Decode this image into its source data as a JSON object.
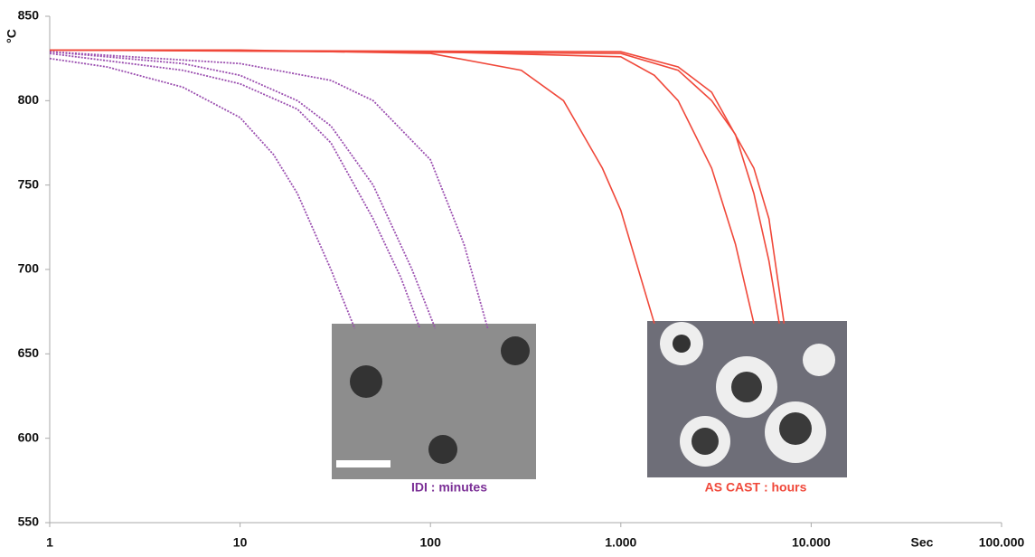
{
  "chart_data": {
    "type": "line",
    "x_label": "Sec",
    "y_label": "°C",
    "xscale": "log",
    "grid": false,
    "xlim": [
      1,
      100000
    ],
    "ylim": [
      550,
      850
    ],
    "xticks": [
      1,
      10,
      100,
      {
        "value": 1000,
        "label": "1.000"
      },
      {
        "value": 10000,
        "label": "10.000"
      },
      {
        "value": 100000,
        "label": "100.000"
      }
    ],
    "yticks": [
      550,
      600,
      650,
      700,
      750,
      800,
      850
    ],
    "series": [
      {
        "color": "#9b4fb0",
        "dash": true,
        "x": [
          1,
          2,
          5,
          10,
          15,
          20,
          30,
          40
        ],
        "values": [
          825,
          820,
          808,
          790,
          768,
          745,
          700,
          665
        ]
      },
      {
        "color": "#9b4fb0",
        "dash": true,
        "x": [
          1,
          5,
          10,
          20,
          30,
          50,
          70,
          88
        ],
        "values": [
          828,
          818,
          810,
          795,
          775,
          730,
          695,
          665
        ]
      },
      {
        "color": "#9b4fb0",
        "dash": true,
        "x": [
          1,
          5,
          10,
          20,
          30,
          50,
          80,
          106
        ],
        "values": [
          829,
          822,
          815,
          800,
          785,
          750,
          700,
          665
        ]
      },
      {
        "color": "#9b4fb0",
        "dash": true,
        "x": [
          1,
          10,
          30,
          50,
          100,
          150,
          200
        ],
        "values": [
          829,
          822,
          812,
          800,
          765,
          715,
          665
        ]
      },
      {
        "color": "#f0483a",
        "dash": false,
        "x": [
          1,
          10,
          100,
          300,
          500,
          800,
          1000,
          1500
        ],
        "values": [
          830,
          830,
          828,
          818,
          800,
          760,
          735,
          668
        ]
      },
      {
        "color": "#f0483a",
        "dash": false,
        "x": [
          1,
          100,
          1000,
          1500,
          2000,
          3000,
          4000,
          5000
        ],
        "values": [
          830,
          829,
          826,
          815,
          800,
          760,
          715,
          668
        ]
      },
      {
        "color": "#f0483a",
        "dash": false,
        "x": [
          1,
          1000,
          2000,
          3000,
          4000,
          5000,
          6000,
          6800
        ],
        "values": [
          830,
          828,
          818,
          800,
          780,
          745,
          705,
          668
        ]
      },
      {
        "color": "#f0483a",
        "dash": false,
        "x": [
          1,
          1000,
          2000,
          3000,
          5000,
          6000,
          7200
        ],
        "values": [
          830,
          829,
          820,
          805,
          760,
          730,
          668
        ]
      }
    ],
    "annotations": [
      {
        "text": "IDI : minutes",
        "color": "#7b2f96"
      },
      {
        "text": "AS CAST : hours",
        "color": "#f0483a"
      }
    ]
  }
}
